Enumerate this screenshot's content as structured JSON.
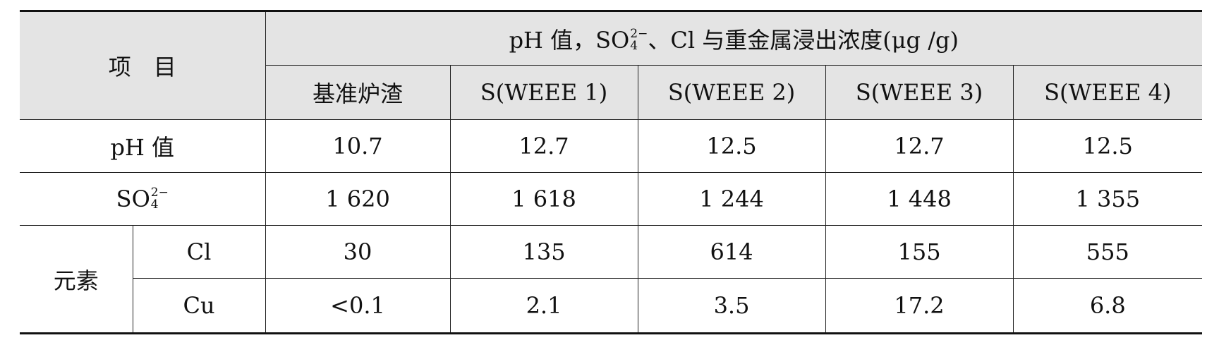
{
  "header": {
    "item_label": "项　目",
    "group_title_prefix": "pH 值，SO",
    "so4_sub": "4",
    "so4_sup": "2−",
    "group_title_suffix": "、Cl 与重金属浸出浓度(μg /g)",
    "columns": [
      "基准炉渣",
      "S(WEEE 1)",
      "S(WEEE 2)",
      "S(WEEE 3)",
      "S(WEEE 4)"
    ]
  },
  "rows": {
    "ph": {
      "label": "pH 值",
      "values": [
        "10.7",
        "12.7",
        "12.5",
        "12.7",
        "12.5"
      ]
    },
    "so4": {
      "label_base": "SO",
      "label_sub": "4",
      "label_sup": "2−",
      "values": [
        "1 620",
        "1 618",
        "1 244",
        "1 448",
        "1 355"
      ]
    },
    "elements_label": "元素",
    "cl": {
      "label": "Cl",
      "values": [
        "30",
        "135",
        "614",
        "155",
        "555"
      ]
    },
    "cu": {
      "label": "Cu",
      "values": [
        "<0.1",
        "2.1",
        "3.5",
        "17.2",
        "6.8"
      ]
    }
  }
}
